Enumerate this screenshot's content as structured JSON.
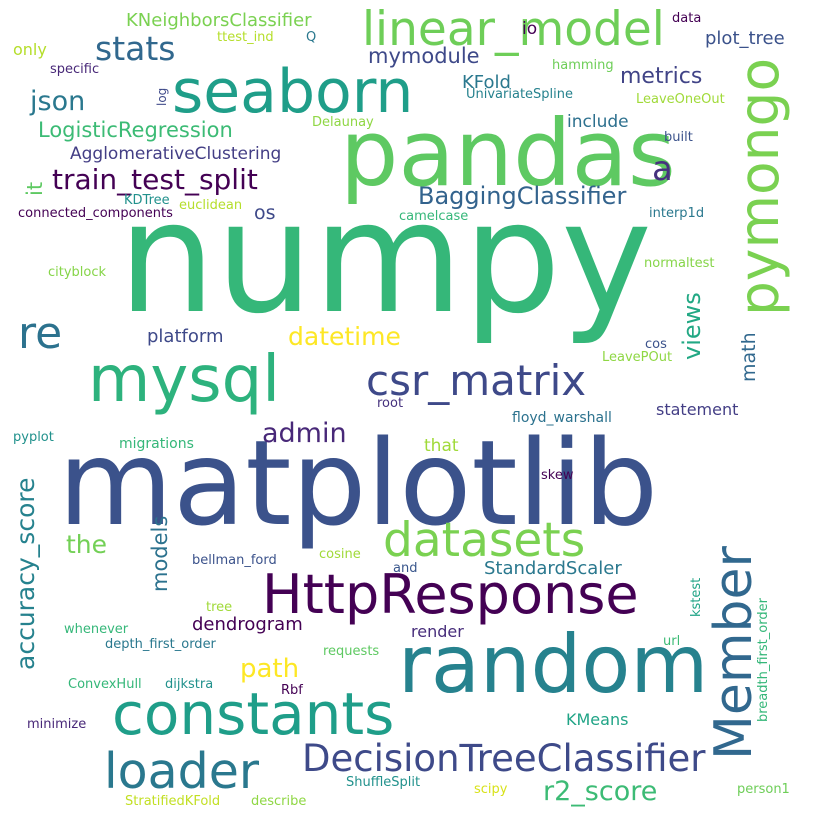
{
  "background": "#ffffff",
  "words": [
    {
      "text": "numpy",
      "color": "#35b779"
    },
    {
      "text": "matplotlib",
      "color": "#3b528b"
    },
    {
      "text": "pandas",
      "color": "#5ec962"
    },
    {
      "text": "random",
      "color": "#26828e"
    },
    {
      "text": "seaborn",
      "color": "#1f9e89"
    },
    {
      "text": "mysql",
      "color": "#2db27d"
    },
    {
      "text": "constants",
      "color": "#1f9e89"
    },
    {
      "text": "linear_model",
      "color": "#6ece58"
    },
    {
      "text": "pymongo",
      "color": "#7ad151"
    },
    {
      "text": "HttpResponse",
      "color": "#440154"
    },
    {
      "text": "Member",
      "color": "#31688e"
    },
    {
      "text": "datasets",
      "color": "#7ad151"
    },
    {
      "text": "DecisionTreeClassifier",
      "color": "#3e4a89"
    },
    {
      "text": "loader",
      "color": "#2a788e"
    },
    {
      "text": "csr_matrix",
      "color": "#3e4989"
    },
    {
      "text": "re",
      "color": "#2c728e"
    },
    {
      "text": "stats",
      "color": "#31688e"
    },
    {
      "text": "train_test_split",
      "color": "#440154"
    },
    {
      "text": "accuracy_score",
      "color": "#26828e"
    },
    {
      "text": "json",
      "color": "#2a788e"
    },
    {
      "text": "admin",
      "color": "#482878"
    },
    {
      "text": "BaggingClassifier",
      "color": "#33638d"
    },
    {
      "text": "LogisticRegression",
      "color": "#3cbb75"
    },
    {
      "text": "r2_score",
      "color": "#3cbb75"
    },
    {
      "text": "KNeighborsClassifier",
      "color": "#7ad151"
    },
    {
      "text": "path",
      "color": "#fde725"
    },
    {
      "text": "datetime",
      "color": "#fde725"
    },
    {
      "text": "views",
      "color": "#22a884"
    },
    {
      "text": "mymodule",
      "color": "#3e4989"
    },
    {
      "text": "metrics",
      "color": "#414487"
    },
    {
      "text": "AgglomerativeClustering",
      "color": "#433e85"
    },
    {
      "text": "a",
      "color": "#46327e"
    },
    {
      "text": "the",
      "color": "#73d056"
    },
    {
      "text": "models",
      "color": "#2c728e"
    },
    {
      "text": "StandardScaler",
      "color": "#2a788e"
    },
    {
      "text": "plot_tree",
      "color": "#3b528b"
    },
    {
      "text": "dendrogram",
      "color": "#440154"
    },
    {
      "text": "platform",
      "color": "#3e4989"
    },
    {
      "text": "math",
      "color": "#31688e"
    },
    {
      "text": "KFold",
      "color": "#2a788e"
    },
    {
      "text": "include",
      "color": "#2d708e"
    },
    {
      "text": "KMeans",
      "color": "#20a486"
    },
    {
      "text": "statement",
      "color": "#433e85"
    },
    {
      "text": "render",
      "color": "#472d7b"
    },
    {
      "text": "os",
      "color": "#3e4989"
    },
    {
      "text": "it",
      "color": "#5ec962"
    },
    {
      "text": "io",
      "color": "#440154"
    },
    {
      "text": "that",
      "color": "#a0da39"
    },
    {
      "text": "only",
      "color": "#b5de2b"
    },
    {
      "text": "ttest_ind",
      "color": "#b5de2b"
    },
    {
      "text": "Q",
      "color": "#2a788e"
    },
    {
      "text": "data",
      "color": "#440154"
    },
    {
      "text": "specific",
      "color": "#482878"
    },
    {
      "text": "hamming",
      "color": "#6ece58"
    },
    {
      "text": "log",
      "color": "#3e4989"
    },
    {
      "text": "UnivariateSpline",
      "color": "#26828e"
    },
    {
      "text": "LeaveOneOut",
      "color": "#a0da39"
    },
    {
      "text": "Delaunay",
      "color": "#8fd744"
    },
    {
      "text": "built",
      "color": "#3b528b"
    },
    {
      "text": "KDTree",
      "color": "#21918c"
    },
    {
      "text": "euclidean",
      "color": "#b5de2b"
    },
    {
      "text": "connected_components",
      "color": "#440154"
    },
    {
      "text": "camelcase",
      "color": "#35b779"
    },
    {
      "text": "interp1d",
      "color": "#2a788e"
    },
    {
      "text": "cityblock",
      "color": "#86d549"
    },
    {
      "text": "normaltest",
      "color": "#86d549"
    },
    {
      "text": "cos",
      "color": "#3b528b"
    },
    {
      "text": "LeavePOut",
      "color": "#8fd744"
    },
    {
      "text": "root",
      "color": "#46327e"
    },
    {
      "text": "floyd_warshall",
      "color": "#2c728e"
    },
    {
      "text": "pyplot",
      "color": "#21918c"
    },
    {
      "text": "migrations",
      "color": "#35b779"
    },
    {
      "text": "skew",
      "color": "#440154"
    },
    {
      "text": "bellman_ford",
      "color": "#3b528b"
    },
    {
      "text": "cosine",
      "color": "#a0da39"
    },
    {
      "text": "and",
      "color": "#39568c"
    },
    {
      "text": "kstest",
      "color": "#20a486"
    },
    {
      "text": "breadth_first_order",
      "color": "#35b779"
    },
    {
      "text": "tree",
      "color": "#a0da39"
    },
    {
      "text": "whenever",
      "color": "#35b779"
    },
    {
      "text": "depth_first_order",
      "color": "#2a788e"
    },
    {
      "text": "requests",
      "color": "#5ec962"
    },
    {
      "text": "url",
      "color": "#3cbb75"
    },
    {
      "text": "ConvexHull",
      "color": "#35b779"
    },
    {
      "text": "dijkstra",
      "color": "#21918c"
    },
    {
      "text": "Rbf",
      "color": "#440154"
    },
    {
      "text": "minimize",
      "color": "#482878"
    },
    {
      "text": "ShuffleSplit",
      "color": "#21918c"
    },
    {
      "text": "StratifiedKFold",
      "color": "#c2df23"
    },
    {
      "text": "describe",
      "color": "#8fd744"
    },
    {
      "text": "scipy",
      "color": "#d8e219"
    },
    {
      "text": "person1",
      "color": "#6ece58"
    }
  ]
}
